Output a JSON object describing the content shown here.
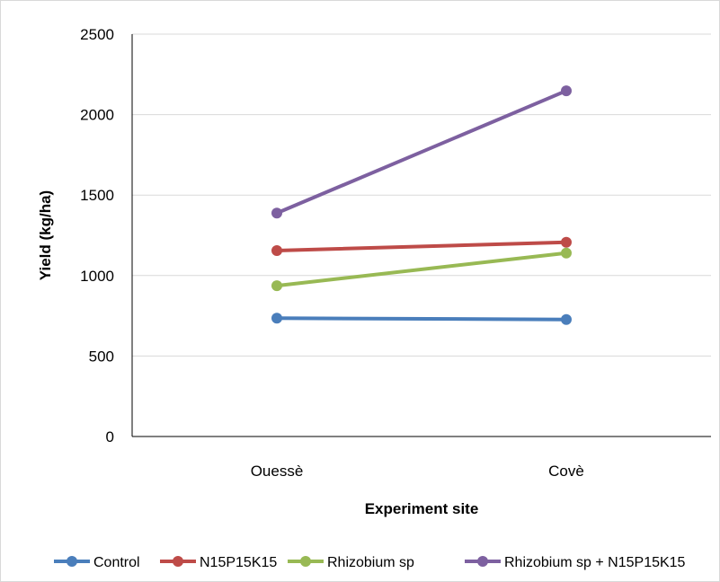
{
  "chart_data": {
    "type": "line",
    "categories": [
      "Ouessè",
      "Covè"
    ],
    "series": [
      {
        "name": "Control",
        "values": [
          735,
          727
        ],
        "color": "#4a7ebb"
      },
      {
        "name": "N15P15K15",
        "values": [
          1155,
          1207
        ],
        "color": "#be4b48"
      },
      {
        "name": "Rhizobium sp",
        "values": [
          937,
          1140
        ],
        "color": "#98b954"
      },
      {
        "name": "Rhizobium sp + N15P15K15",
        "values": [
          1388,
          2148
        ],
        "color": "#7d60a0"
      }
    ],
    "xlabel": "Experiment site",
    "ylabel": "Yield (kg/ha)",
    "ylim": [
      0,
      2500
    ],
    "yticks": [
      0,
      500,
      1000,
      1500,
      2000,
      2500
    ],
    "grid": true,
    "legend_position": "bottom"
  }
}
